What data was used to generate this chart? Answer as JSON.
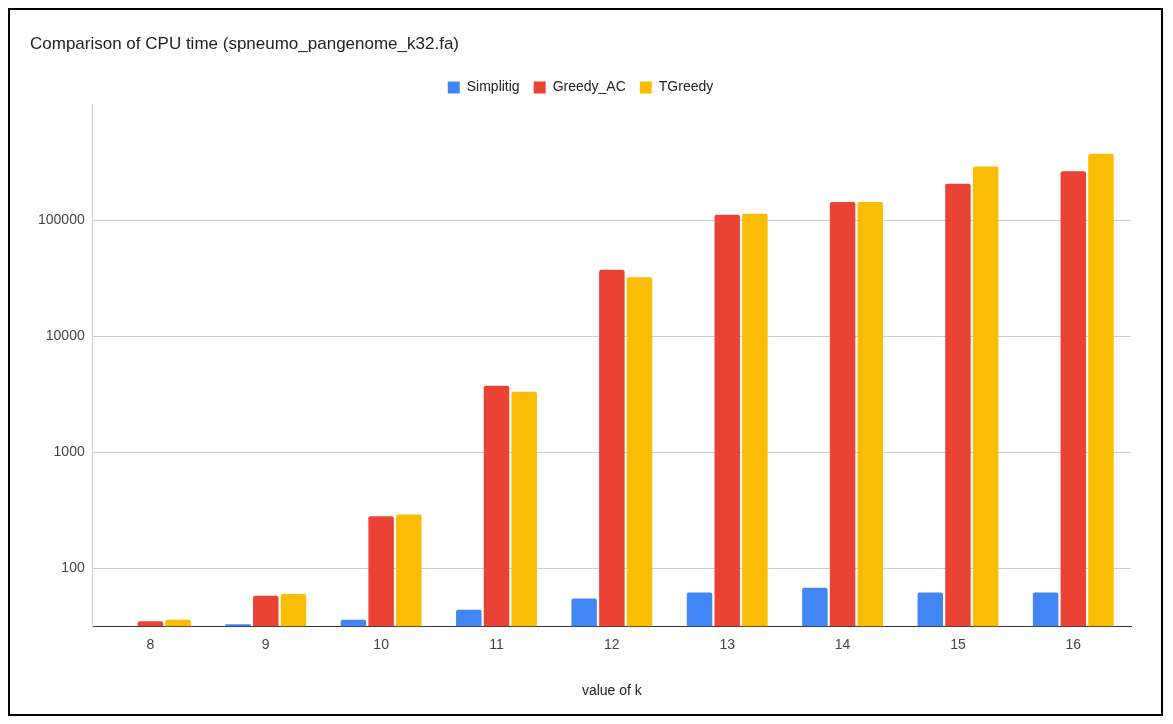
{
  "chart_data": {
    "type": "bar",
    "title": "Comparison of CPU time (spneumo_pangenome_k32.fa)",
    "xlabel": "value of k",
    "categories": [
      "8",
      "9",
      "10",
      "11",
      "12",
      "13",
      "14",
      "15",
      "16"
    ],
    "series": [
      {
        "name": "Simplitig",
        "color": "#4285f4",
        "values": [
          null,
          33,
          36,
          44,
          55,
          62,
          68,
          62,
          62
        ]
      },
      {
        "name": "Greedy_AC",
        "color": "#ea4335",
        "values": [
          35,
          58,
          281,
          3750,
          37500,
          112000,
          144000,
          207000,
          265000
        ]
      },
      {
        "name": "TGreedy",
        "color": "#fbbc04",
        "values": [
          36,
          60,
          292,
          3340,
          32300,
          114000,
          144000,
          292000,
          375000
        ]
      }
    ],
    "log": "y",
    "ylim": [
      31.6,
      1000000
    ],
    "yticks": [
      100,
      1000,
      10000,
      100000
    ],
    "grid": "y",
    "legend": "top"
  }
}
